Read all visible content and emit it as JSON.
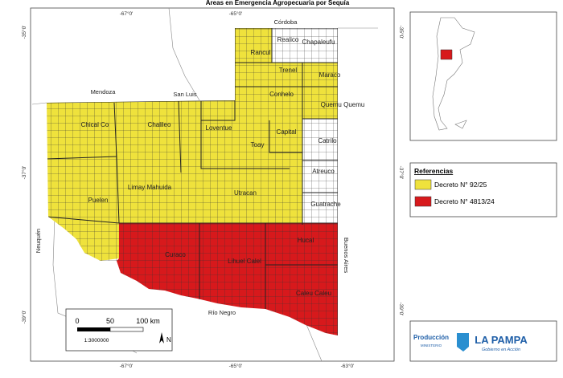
{
  "title": "Áreas en Emergencia Agropecuaria por Sequía",
  "graticule": {
    "top": [
      "-67°0'",
      "-65°0'"
    ],
    "bottom": [
      "-67°0'",
      "-65°0'",
      "-63°0'"
    ],
    "left": [
      "-35°0'",
      "-37°0'",
      "-39°0'"
    ],
    "right": [
      "-35°0'",
      "-37°0'",
      "-39°0'"
    ]
  },
  "provinces": [
    "Córdoba",
    "Mendoza",
    "San Luis",
    "Neuquén",
    "Buenos Aires",
    "Río Negro"
  ],
  "departments": [
    "Realico",
    "Chapaleufu",
    "Rancul",
    "Trenel",
    "Maraco",
    "Conhelo",
    "Quemu Quemu",
    "Chical Co",
    "Chalileo",
    "Loventue",
    "Capital",
    "Catrilo",
    "Toay",
    "Atreuco",
    "Limay Mahuida",
    "Puelen",
    "Utracan",
    "Guatrache",
    "Curaco",
    "Hucal",
    "Lihuel Calel",
    "Caleu Caleu"
  ],
  "legend": {
    "title": "Referencias",
    "items": [
      {
        "label": "Decreto N° 92/25",
        "color": "#efe23c"
      },
      {
        "label": "Decreto N° 4813/24",
        "color": "#d7191c"
      }
    ]
  },
  "scale_bar": {
    "labels": [
      "0",
      "50",
      "100 km"
    ],
    "ratio": "1:3000000",
    "north": "N"
  },
  "logo": {
    "ministry": "Producción",
    "ministry_sub": "MINISTERIO",
    "province": "LA PAMPA",
    "slogan": "Gobierno en Acción"
  }
}
